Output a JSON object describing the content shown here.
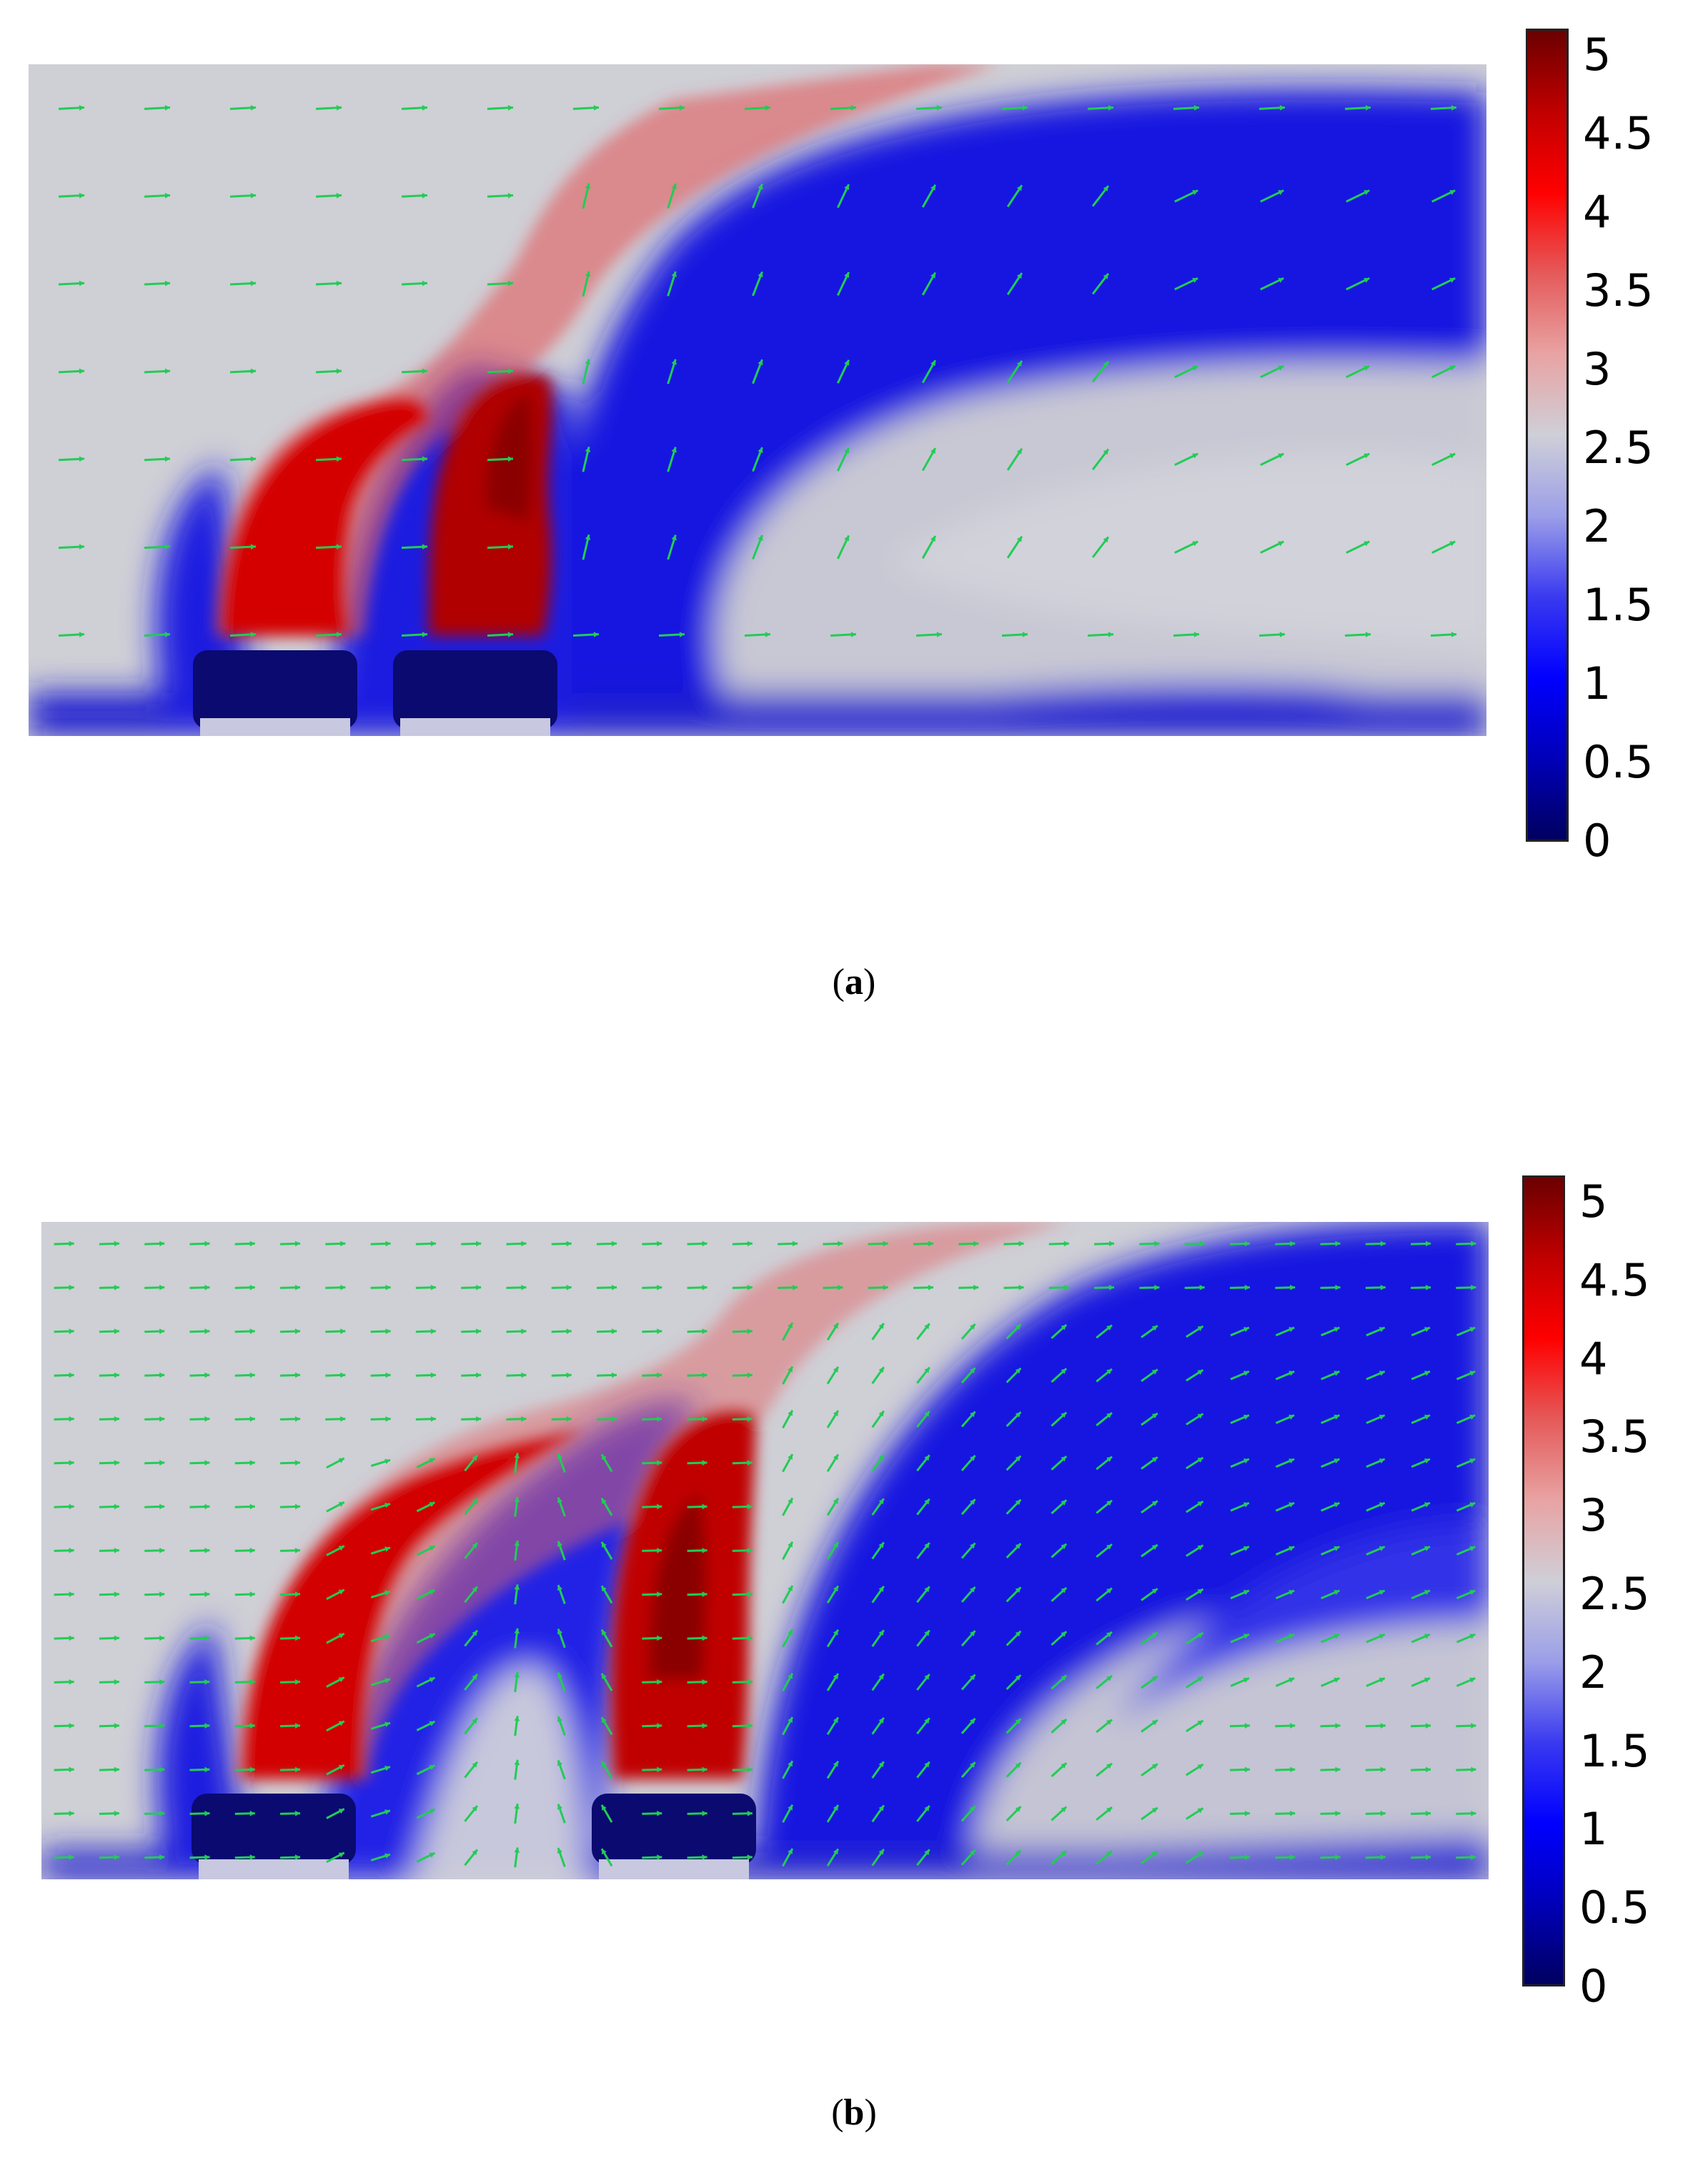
{
  "colorbar": {
    "ticks": [
      "5",
      "4.5",
      "4",
      "3.5",
      "3",
      "2.5",
      "2",
      "1.5",
      "1",
      "0.5",
      "0"
    ],
    "stops": [
      "#6b0000",
      "#c00000",
      "#ff0000",
      "#e55a5a",
      "#e8a3a3",
      "#cfcfd8",
      "#9b9ee8",
      "#3a3af0",
      "#0000ff",
      "#0000b8",
      "#000060"
    ]
  },
  "panels": [
    {
      "caption_open": "(",
      "caption_letter": "a",
      "caption_close": ")",
      "arrow_color": "#22cc55"
    },
    {
      "caption_open": "(",
      "caption_letter": "b",
      "caption_close": ")",
      "arrow_color": "#22cc55"
    }
  ]
}
